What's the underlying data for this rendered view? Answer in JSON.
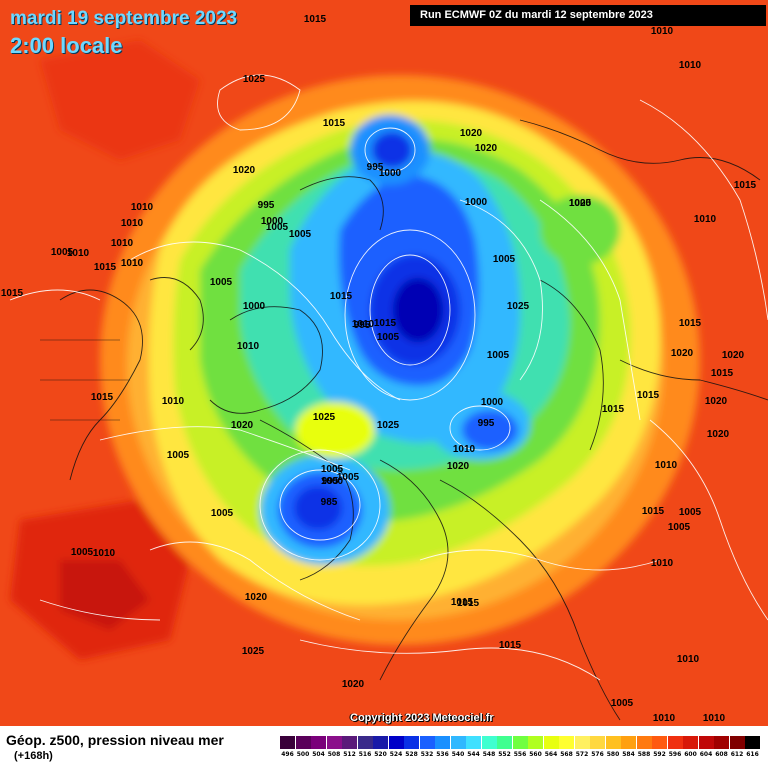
{
  "header": {
    "date": "mardi 19 septembre 2023",
    "time": "2:00 locale",
    "run": "Run ECMWF 0Z du mardi 12 septembre 2023"
  },
  "footer": {
    "title": "Géop. z500, pression niveau mer",
    "hour": "(+168h)",
    "copyright": "Copyright 2023 Meteociel.fr"
  },
  "legend": {
    "values": [
      "496",
      "500",
      "504",
      "508",
      "512",
      "516",
      "520",
      "524",
      "528",
      "532",
      "536",
      "540",
      "544",
      "548",
      "552",
      "556",
      "560",
      "564",
      "568",
      "572",
      "576",
      "580",
      "584",
      "588",
      "592",
      "596",
      "600",
      "604",
      "608",
      "612",
      "616"
    ],
    "colors": [
      "#3a003a",
      "#5a005a",
      "#7a007a",
      "#8a0f8a",
      "#5a1a7a",
      "#3a2a8a",
      "#1a1aa8",
      "#0000c8",
      "#0a30e6",
      "#1a60ff",
      "#1a90ff",
      "#30b8ff",
      "#40e0ff",
      "#40ffd0",
      "#40ff90",
      "#70ff40",
      "#b0ff20",
      "#e8ff10",
      "#ffff30",
      "#fff060",
      "#ffd840",
      "#ffc020",
      "#ffa010",
      "#ff7a10",
      "#ff5a10",
      "#f03010",
      "#d81808",
      "#c00808",
      "#a00000",
      "#800000",
      "#000000"
    ]
  },
  "pressure_labels": [
    "1015",
    "1010",
    "1010",
    "1025",
    "1015",
    "1020",
    "995",
    "1000",
    "1020",
    "1020",
    "995",
    "1000",
    "1005",
    "1005",
    "1010",
    "1010",
    "1005",
    "1010",
    "1010",
    "1015",
    "1010",
    "1015",
    "1015",
    "1015",
    "1005",
    "995",
    "1000",
    "1005",
    "1025",
    "1020",
    "1015",
    "1010",
    "1005",
    "1000",
    "1010",
    "1005",
    "1000",
    "995",
    "1015",
    "1005",
    "1020",
    "1015",
    "1015",
    "1020",
    "1010",
    "1015",
    "1020",
    "1020",
    "1000",
    "1010",
    "1005",
    "1020",
    "1025",
    "1025",
    "1015",
    "1005",
    "1005",
    "995",
    "985",
    "1005",
    "1010",
    "1020",
    "1015",
    "1015",
    "1005",
    "1005",
    "1010",
    "1020",
    "1010",
    "1015",
    "1025",
    "1015",
    "1020",
    "1005",
    "1010",
    "1010",
    "1010",
    "1005",
    "1010"
  ]
}
